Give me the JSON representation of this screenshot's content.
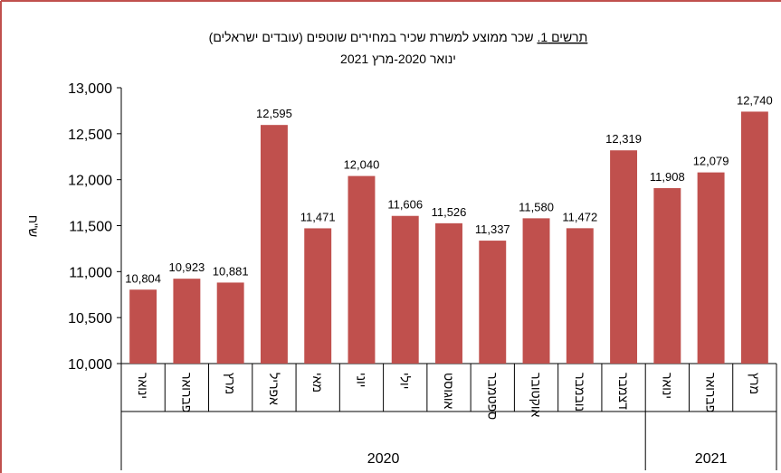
{
  "chart_data": {
    "type": "bar",
    "title_prefix": "תרשים 1.",
    "title": "שכר ממוצע למשרת שכיר במחירים שוטפים (עובדים ישראלים)",
    "subtitle": "ינואר 2020-מרץ 2021",
    "y_label": "ש\"ח",
    "categories": [
      "ינואר",
      "פברואר",
      "מרץ",
      "אפריל",
      "מאי",
      "יוני",
      "יולי",
      "אוגוסט",
      "ספטמבר",
      "אוקטובר",
      "נובמבר",
      "דצמבר",
      "ינואר",
      "פברואר",
      "מרץ"
    ],
    "groups": [
      "2020",
      "2020",
      "2020",
      "2020",
      "2020",
      "2020",
      "2020",
      "2020",
      "2020",
      "2020",
      "2020",
      "2020",
      "2021",
      "2021",
      "2021"
    ],
    "values": [
      10804,
      10923,
      10881,
      12595,
      11471,
      12040,
      11606,
      11526,
      11337,
      11580,
      11472,
      12319,
      11908,
      12079,
      12740
    ],
    "value_labels": [
      "10,804",
      "10,923",
      "10,881",
      "12,595",
      "11,471",
      "12,040",
      "11,606",
      "11,526",
      "11,337",
      "11,580",
      "11,472",
      "12,319",
      "11,908",
      "12,079",
      "12,740"
    ],
    "color": "#c0504d",
    "ylim": [
      10000,
      13000
    ],
    "yticks": [
      {
        "value": 10000,
        "label": "10,000"
      },
      {
        "value": 10500,
        "label": "10,500"
      },
      {
        "value": 11000,
        "label": "11,000"
      },
      {
        "value": 11500,
        "label": "11,500"
      },
      {
        "value": 12000,
        "label": "12,000"
      },
      {
        "value": 12500,
        "label": "12,500"
      },
      {
        "value": 13000,
        "label": "13,000"
      }
    ],
    "grid": false
  }
}
